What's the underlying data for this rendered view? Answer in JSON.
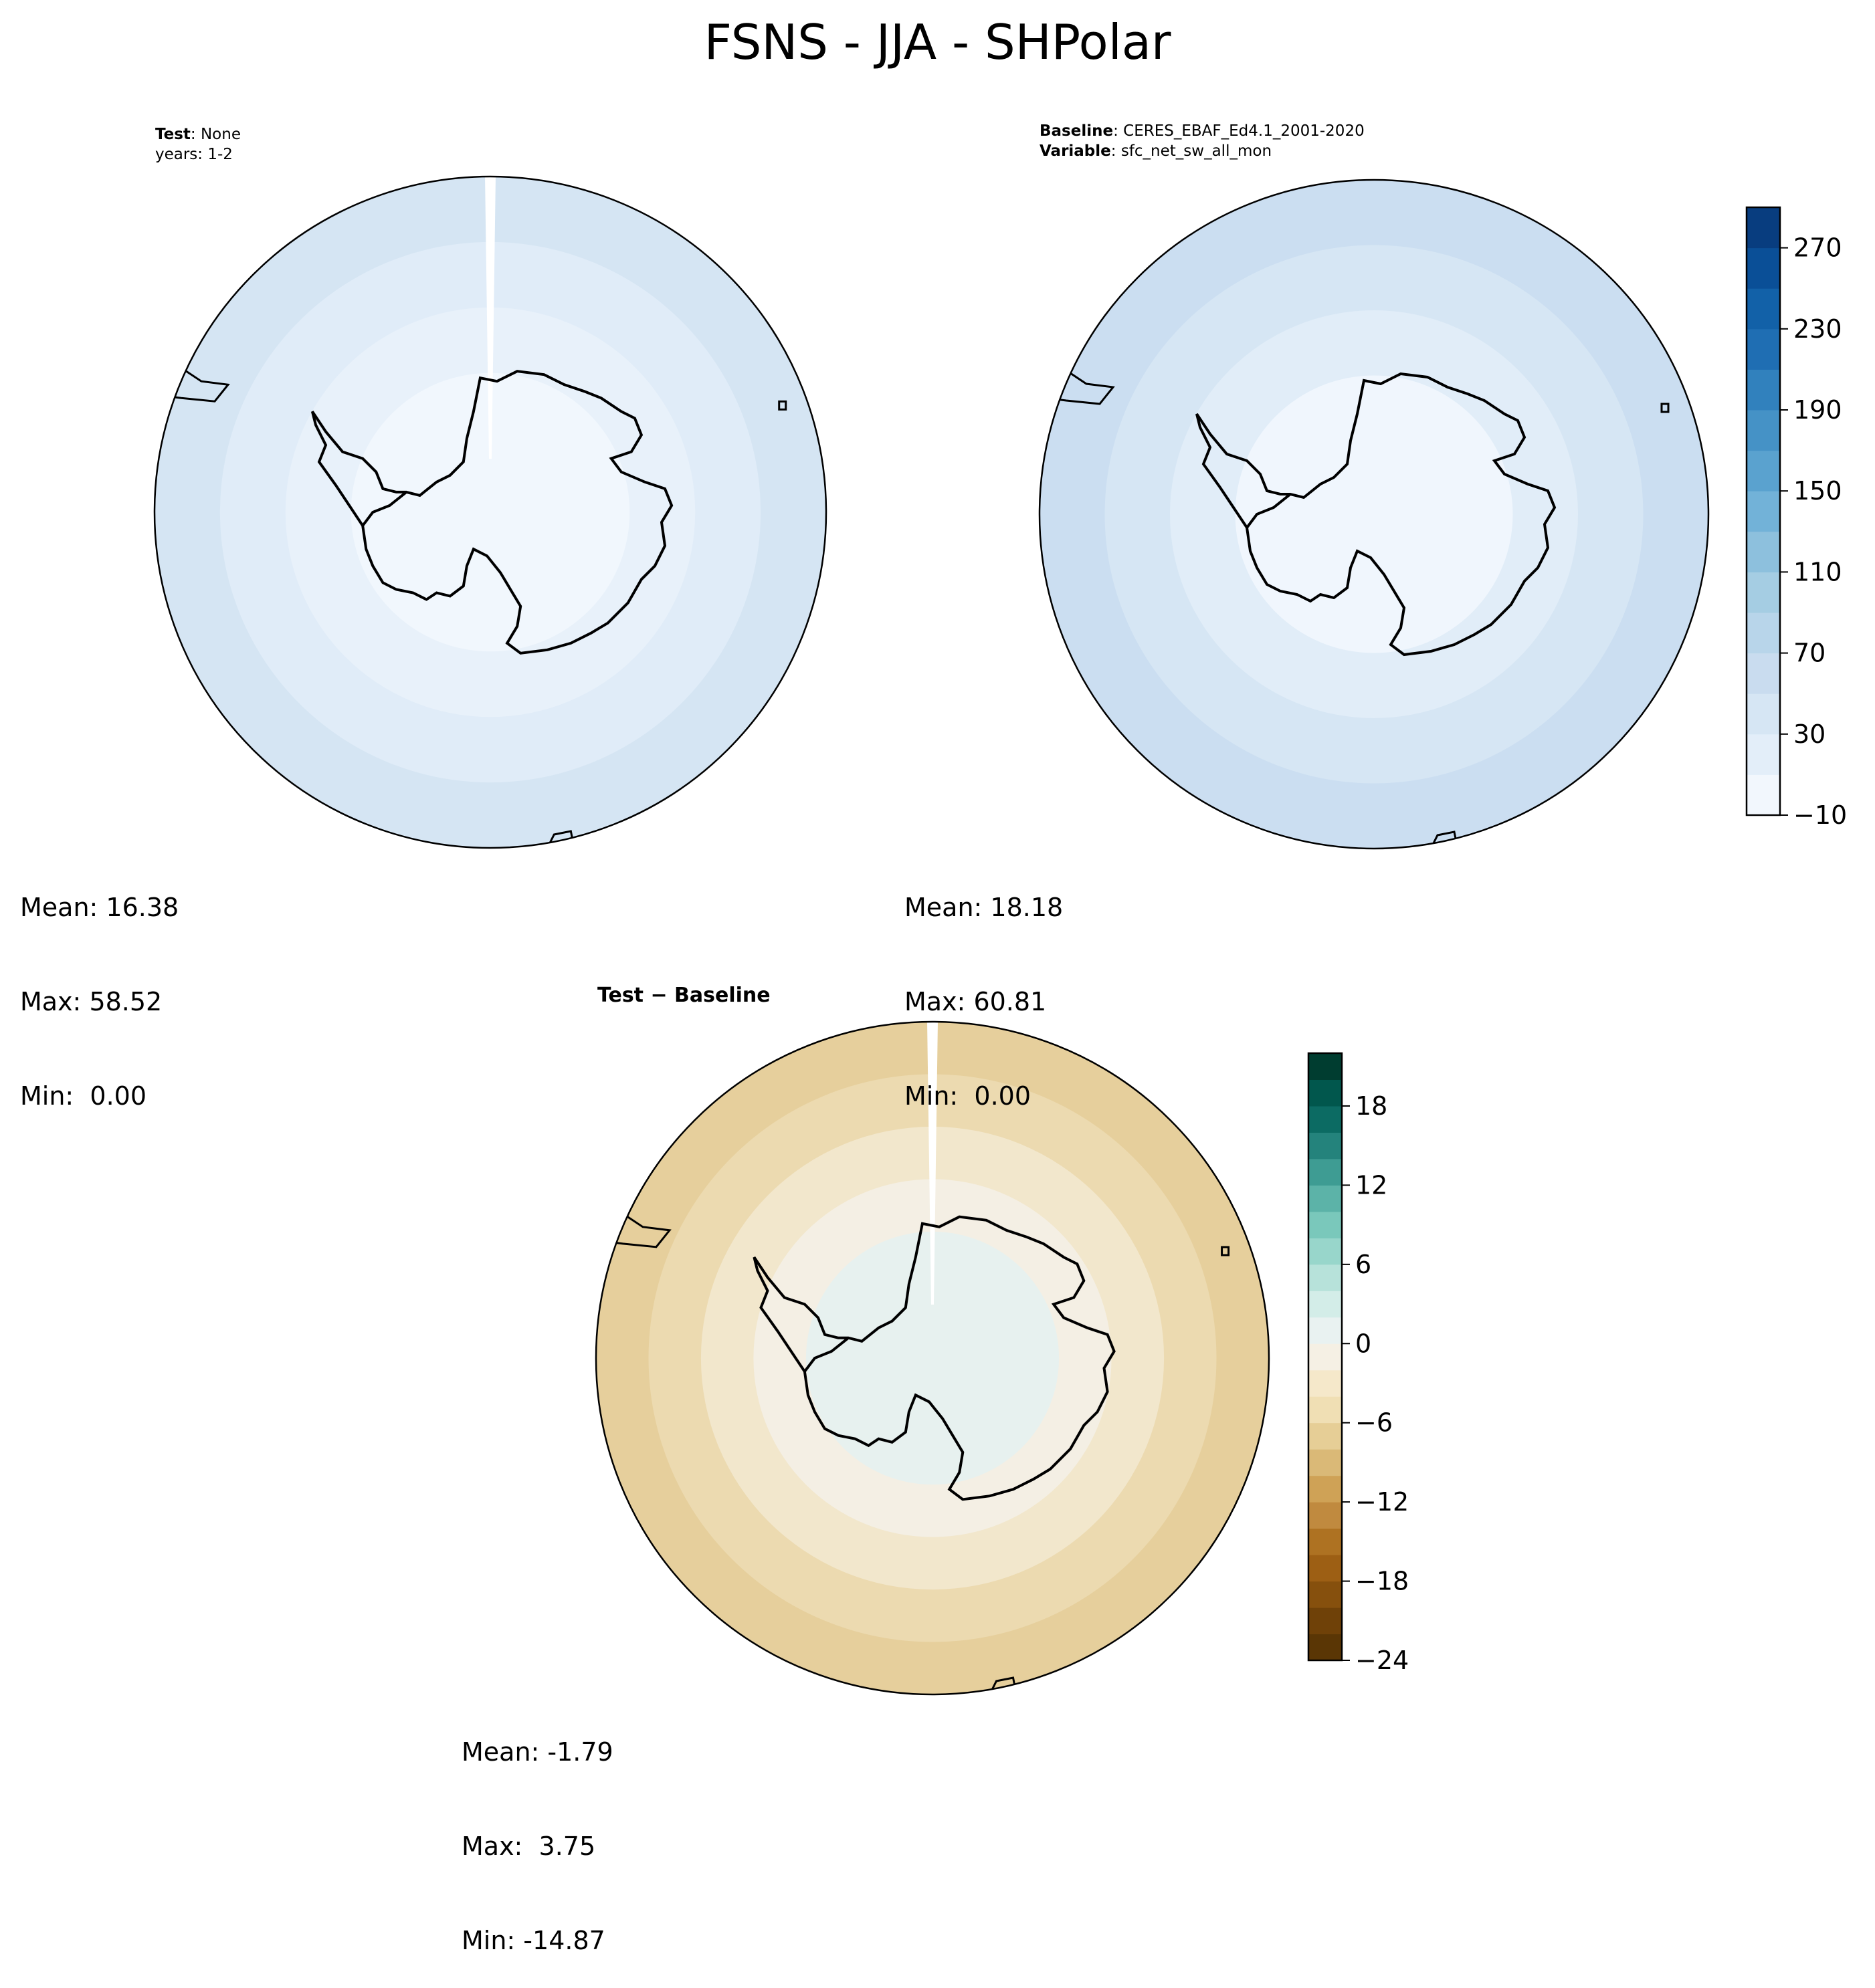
{
  "title": "FSNS - JJA - SHPolar",
  "panels": [
    {
      "id": "test",
      "header_line1_bold": "Test",
      "header_line1_text": ": None",
      "header_line2": "years: 1-2",
      "stats": {
        "mean": "Mean: 16.38",
        "max": "Max: 58.52",
        "min": "Min:  0.00"
      }
    },
    {
      "id": "baseline",
      "header_line1_bold": "Baseline",
      "header_line1_text": ": CERES_EBAF_Ed4.1_2001-2020",
      "header_line2_bold": "Variable",
      "header_line2_text": ": sfc_net_sw_all_mon",
      "stats": {
        "mean": "Mean: 18.18",
        "max": "Max: 60.81",
        "min": "Min:  0.00"
      }
    },
    {
      "id": "diff",
      "header_bold": "Test − Baseline",
      "stats": {
        "mean": "Mean: -1.79",
        "max": "Max:  3.75",
        "min": "Min: -14.87"
      }
    }
  ],
  "colorbar_top": {
    "levels": [
      -10,
      10,
      30,
      50,
      70,
      90,
      110,
      130,
      150,
      170,
      190,
      210,
      230,
      250,
      270,
      290
    ],
    "ticks": [
      "−10",
      "30",
      "70",
      "110",
      "150",
      "190",
      "230",
      "270"
    ],
    "colors": [
      "#f2f7fd",
      "#e3eef9",
      "#d6e6f4",
      "#c9dcef",
      "#b8d5ea",
      "#a5cde3",
      "#8dc0dd",
      "#72b2d8",
      "#5aa2cf",
      "#4592c6",
      "#3181bd",
      "#1f6eb3",
      "#1261a8",
      "#0a4f97",
      "#083d7f"
    ]
  },
  "colorbar_diff": {
    "levels": [
      -24,
      -22,
      -20,
      -18,
      -16,
      -14,
      -12,
      -10,
      -8,
      -6,
      -4,
      -2,
      0,
      2,
      4,
      6,
      8,
      10,
      12,
      14,
      16,
      18,
      20,
      22
    ],
    "ticks": [
      "−24",
      "−18",
      "−12",
      "−6",
      "0",
      "6",
      "12",
      "18"
    ],
    "colors": [
      "#5a3605",
      "#6f4108",
      "#86500d",
      "#9d5f14",
      "#ae7222",
      "#c08a3f",
      "#cfa256",
      "#dab977",
      "#e6ce96",
      "#f0dfb4",
      "#f5e8ca",
      "#f5f0e4",
      "#e9f2f1",
      "#d3ede8",
      "#b7e2da",
      "#98d6cb",
      "#7ac8bb",
      "#5cb3a8",
      "#3e9c93",
      "#24837c",
      "#0c6b63",
      "#01574d",
      "#003d30"
    ]
  },
  "map_colors": {
    "test_rings": [
      "#d5e5f3",
      "#e0ecf8",
      "#e8f1fa",
      "#f1f7fd"
    ],
    "base_rings": [
      "#cbdef1",
      "#d6e6f4",
      "#e1edf8",
      "#f0f6fd"
    ],
    "diff_rings": [
      "#e6cf9c",
      "#ecdab0",
      "#f2e7cc",
      "#f4efe4",
      "#e7f1ef"
    ],
    "coast": "#000000"
  }
}
